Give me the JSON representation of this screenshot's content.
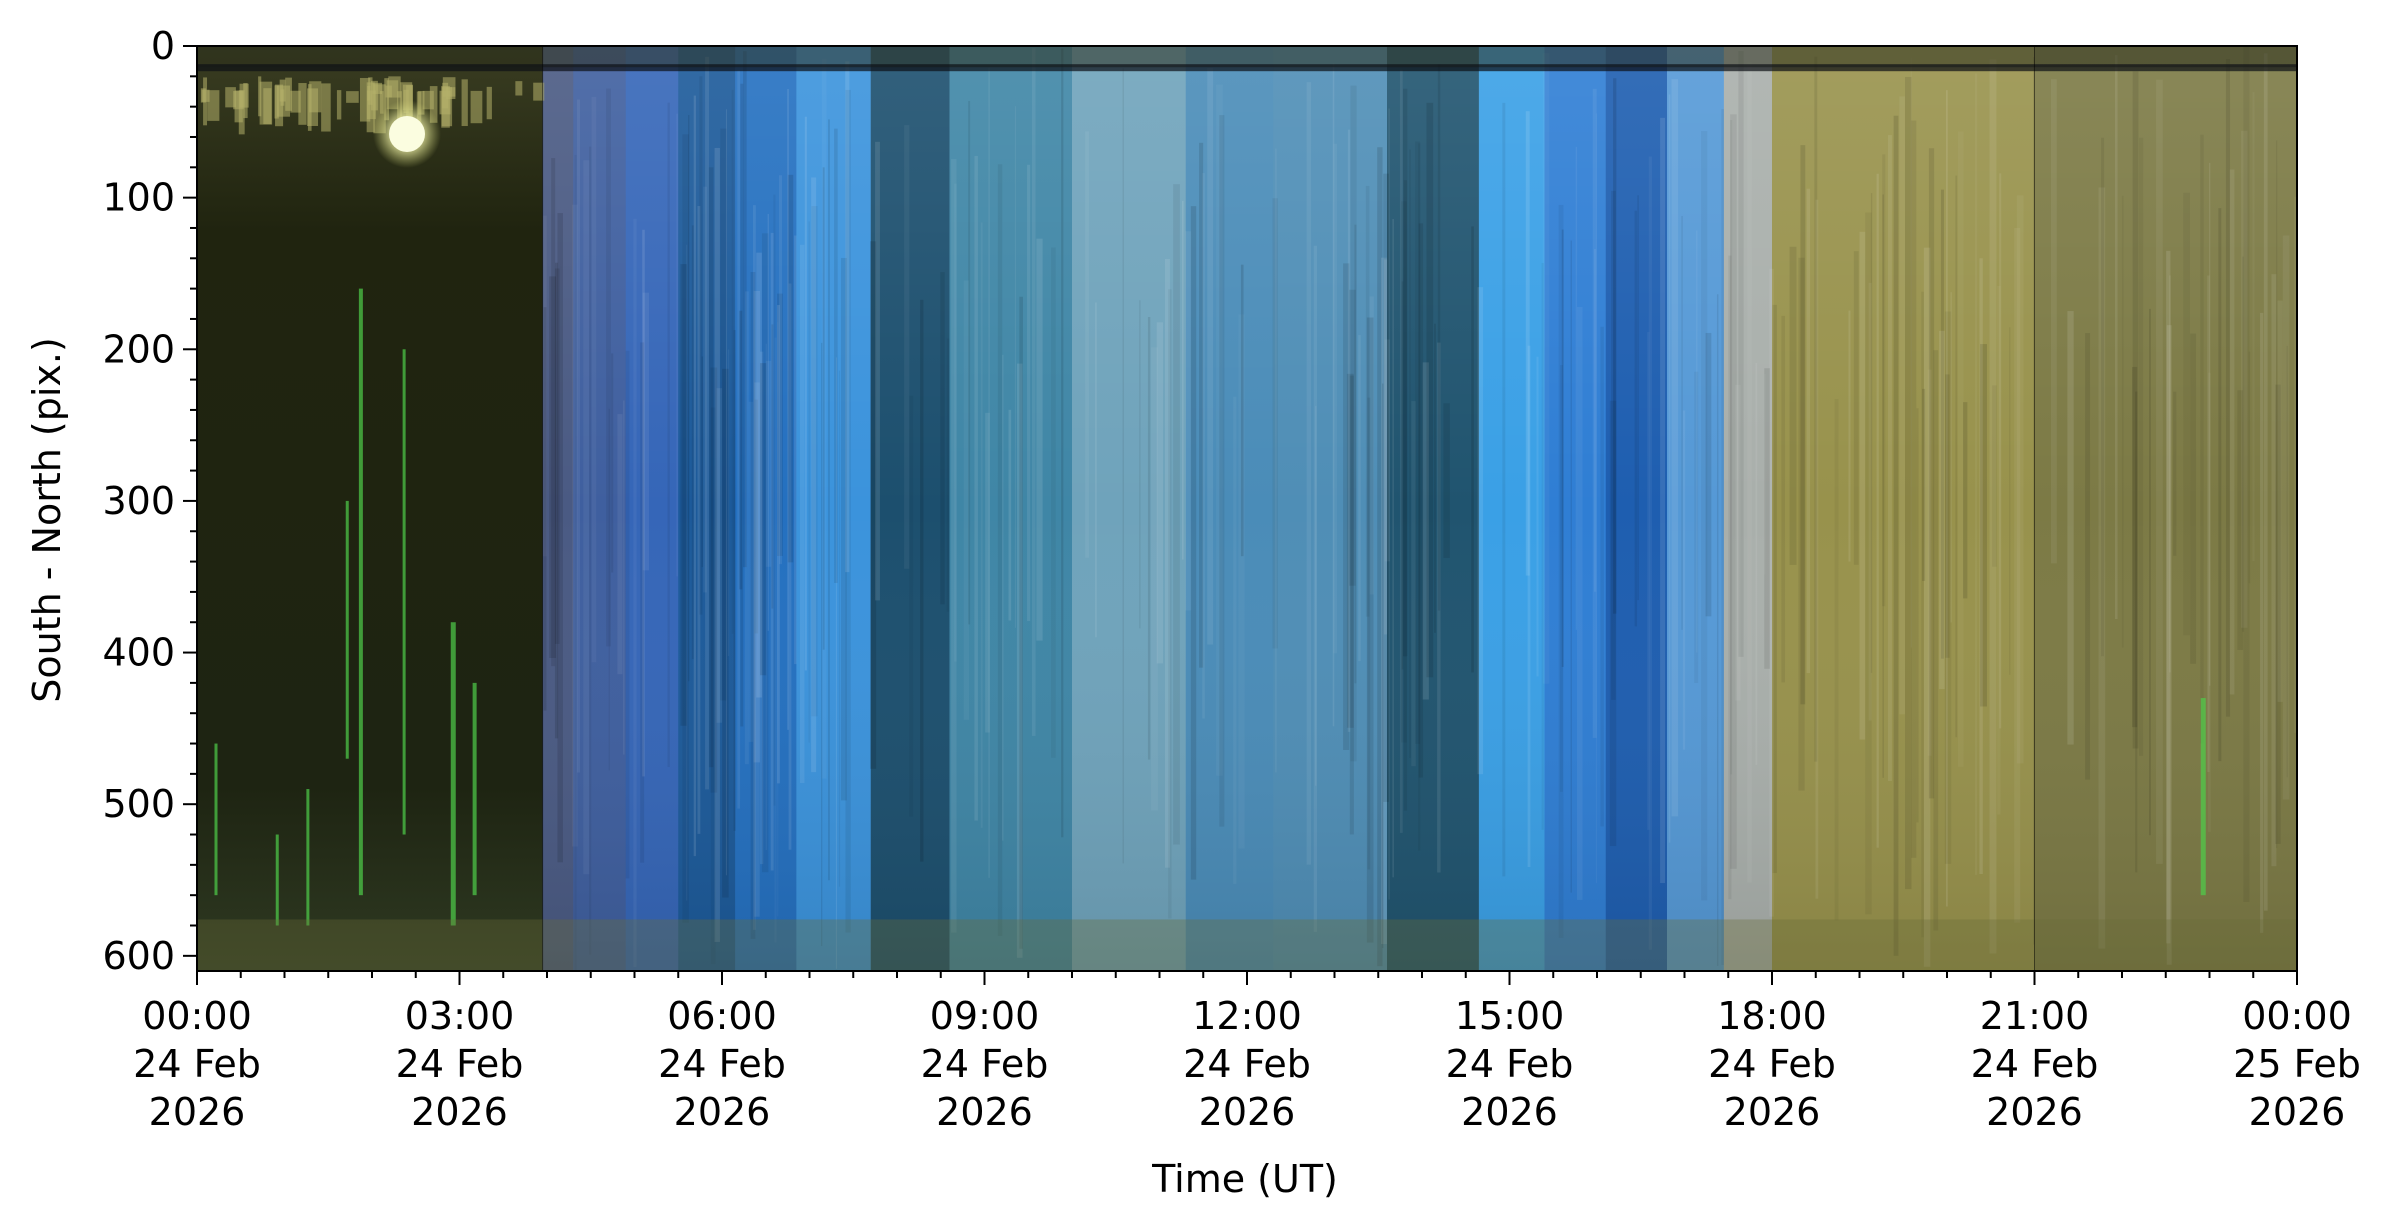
{
  "chart_data": {
    "type": "heatmap",
    "title": "",
    "xlabel": "Time (UT)",
    "ylabel": "South - North (pix.)",
    "x_range": [
      "2026-02-24 00:00",
      "2026-02-25 00:00"
    ],
    "y_range": [
      0,
      610
    ],
    "y_inverted": true,
    "x_ticks": [
      {
        "t": 0,
        "lines": [
          "00:00",
          "24 Feb",
          "2026"
        ]
      },
      {
        "t": 3,
        "lines": [
          "03:00",
          "24 Feb",
          "2026"
        ]
      },
      {
        "t": 6,
        "lines": [
          "06:00",
          "24 Feb",
          "2026"
        ]
      },
      {
        "t": 9,
        "lines": [
          "09:00",
          "24 Feb",
          "2026"
        ]
      },
      {
        "t": 12,
        "lines": [
          "12:00",
          "24 Feb",
          "2026"
        ]
      },
      {
        "t": 15,
        "lines": [
          "15:00",
          "24 Feb",
          "2026"
        ]
      },
      {
        "t": 18,
        "lines": [
          "18:00",
          "24 Feb",
          "2026"
        ]
      },
      {
        "t": 21,
        "lines": [
          "21:00",
          "24 Feb",
          "2026"
        ]
      },
      {
        "t": 24,
        "lines": [
          "00:00",
          "25 Feb",
          "2026"
        ]
      }
    ],
    "y_ticks": [
      0,
      100,
      200,
      300,
      400,
      500,
      600
    ],
    "grid": false,
    "bands": [
      {
        "t0": 0.0,
        "t1": 3.95,
        "color": "#232715",
        "kind": "night"
      },
      {
        "t0": 3.95,
        "t1": 4.3,
        "color": "#4a5a83"
      },
      {
        "t0": 4.3,
        "t1": 4.9,
        "color": "#3f5f9f"
      },
      {
        "t0": 4.9,
        "t1": 5.5,
        "color": "#3566b8"
      },
      {
        "t0": 5.5,
        "t1": 6.15,
        "color": "#1c5a9a"
      },
      {
        "t0": 6.15,
        "t1": 6.85,
        "color": "#2470c0"
      },
      {
        "t0": 6.85,
        "t1": 7.7,
        "color": "#3b93dc"
      },
      {
        "t0": 7.7,
        "t1": 8.6,
        "color": "#1c4f6e"
      },
      {
        "t0": 8.6,
        "t1": 10.0,
        "color": "#3f86a6"
      },
      {
        "t0": 10.0,
        "t1": 11.3,
        "color": "#6fa3bb"
      },
      {
        "t0": 11.3,
        "t1": 12.3,
        "color": "#4a8cb8"
      },
      {
        "t0": 12.3,
        "t1": 13.6,
        "color": "#4f8eb6"
      },
      {
        "t0": 13.6,
        "t1": 14.65,
        "color": "#20546f"
      },
      {
        "t0": 14.65,
        "t1": 15.4,
        "color": "#3aa0e6"
      },
      {
        "t0": 15.4,
        "t1": 16.1,
        "color": "#2f7ed4"
      },
      {
        "t0": 16.1,
        "t1": 16.8,
        "color": "#1e5eb0"
      },
      {
        "t0": 16.8,
        "t1": 17.45,
        "color": "#5599d6"
      },
      {
        "t0": 17.45,
        "t1": 18.0,
        "color": "#a9afab"
      },
      {
        "t0": 18.0,
        "t1": 21.0,
        "color": "#98924c"
      },
      {
        "t0": 21.0,
        "t1": 24.0,
        "color": "#7c7a45"
      }
    ],
    "moon": {
      "t": 2.4,
      "y": 58
    }
  }
}
